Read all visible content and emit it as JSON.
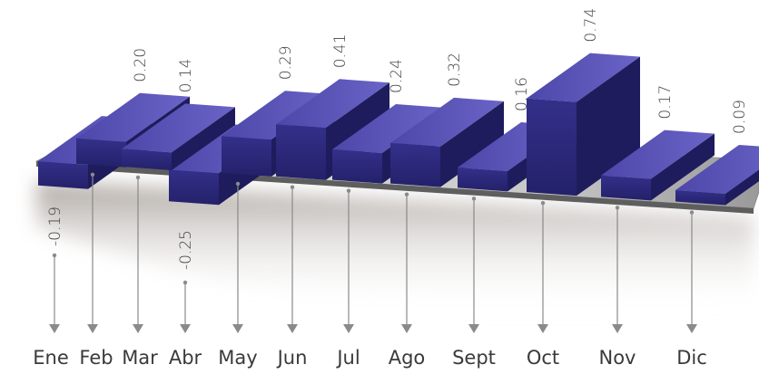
{
  "chart_data": {
    "type": "bar",
    "categories": [
      "Ene",
      "Feb",
      "Mar",
      "Abr",
      "May",
      "Jun",
      "Jul",
      "Ago",
      "Sept",
      "Oct",
      "Nov",
      "Dic"
    ],
    "values": [
      -0.19,
      0.2,
      0.14,
      -0.25,
      0.29,
      0.41,
      0.24,
      0.32,
      0.16,
      0.74,
      0.17,
      0.09
    ],
    "value_labels": [
      "-0.19",
      "0.20",
      "0.14",
      "-0.25",
      "0.29",
      "0.41",
      "0.24",
      "0.32",
      "0.16",
      "0.74",
      "0.17",
      "0.09"
    ],
    "title": "",
    "xlabel": "",
    "ylabel": "",
    "grid": false,
    "legend": "none",
    "colors": {
      "bar_front": "#2d2a7a",
      "bar_top": "#5a55b8",
      "bar_side": "#1e1c5c",
      "platform": "#bdbdbd",
      "platform_edge": "#6e6e6e",
      "arrow": "#8a8a8a"
    }
  }
}
